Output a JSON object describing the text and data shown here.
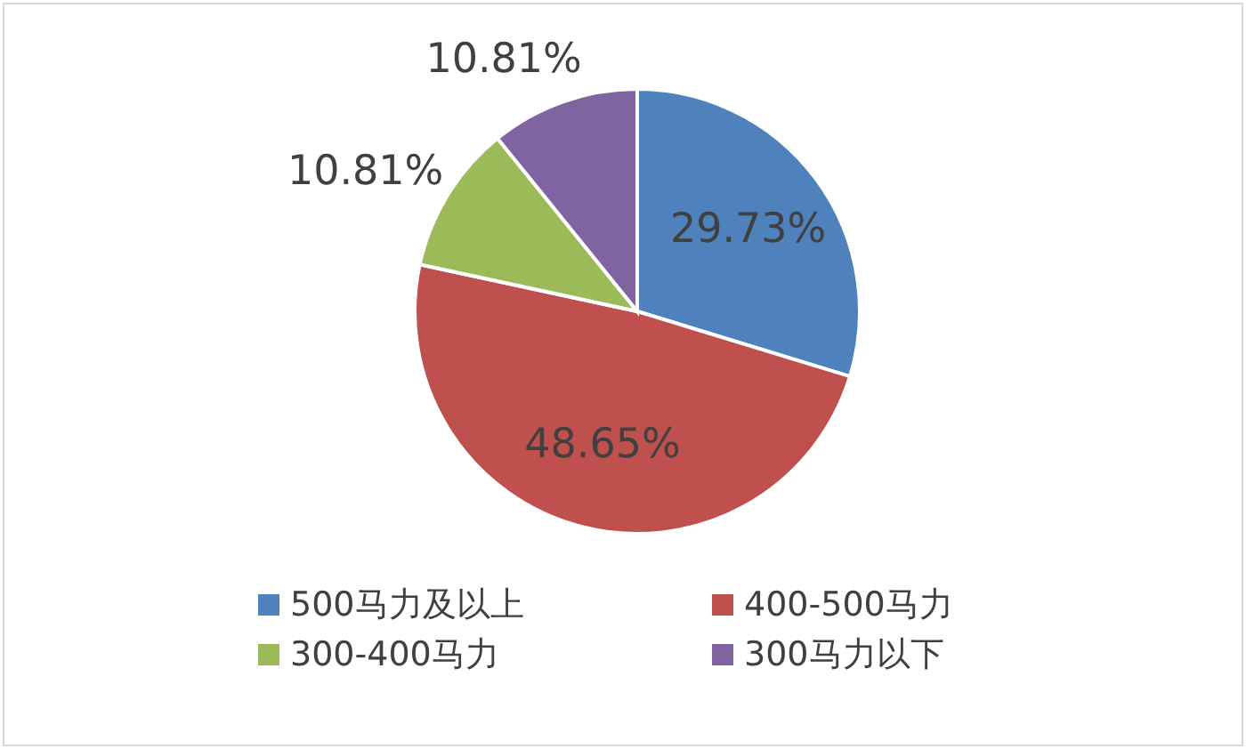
{
  "chart_data": {
    "type": "pie",
    "categories": [
      "500马力及以上",
      "400-500马力",
      "300-400马力",
      "300马力以下"
    ],
    "values": [
      29.73,
      48.65,
      10.81,
      10.81
    ],
    "colors": [
      "#4f81bd",
      "#c0504d",
      "#9bbb59",
      "#8064a2"
    ],
    "value_labels": [
      "29.73%",
      "48.65%",
      "10.81%",
      "10.81%"
    ],
    "legend": "bottom"
  }
}
